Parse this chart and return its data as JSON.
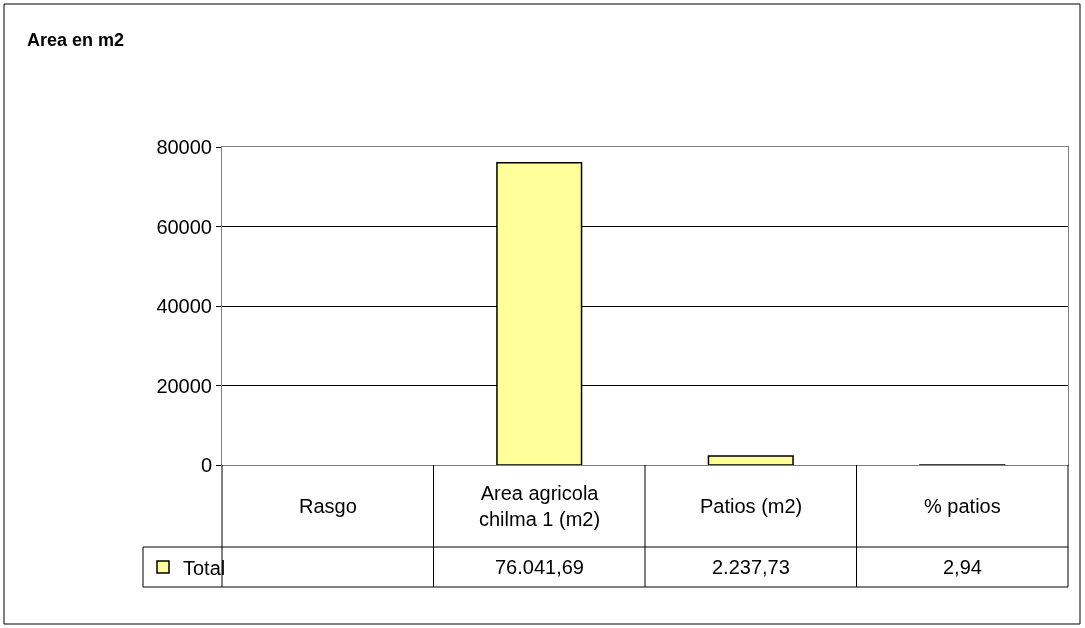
{
  "chart_data": {
    "type": "bar",
    "title": "Area en m2",
    "categories": [
      "Rasgo",
      "Area agricola chilma 1 (m2)",
      "Patios (m2)",
      "% patios"
    ],
    "series": [
      {
        "name": "Total",
        "color": "#ffff99",
        "values": [
          null,
          76041.69,
          2237.73,
          2.94
        ],
        "value_labels": [
          null,
          "76.041,69",
          "2.237,73",
          "2,94"
        ]
      }
    ],
    "ylim": [
      0,
      80000
    ],
    "yticks": [
      0,
      20000,
      40000,
      60000,
      80000
    ],
    "grid": "y",
    "legend": "bottom left"
  }
}
